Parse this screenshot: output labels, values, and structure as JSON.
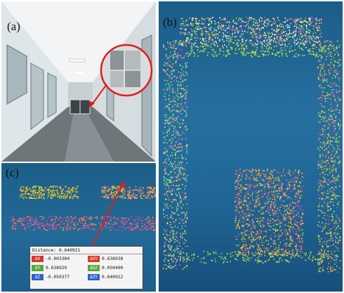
{
  "labels": {
    "a": "(a)",
    "b": "(b)",
    "c": "(c)"
  },
  "measurement": {
    "title": "Distance: 0.640921",
    "rows": [
      [
        {
          "axis": "ΔX",
          "value": "-0.003384",
          "color": "#d9382e"
        },
        {
          "axis": "ΔXY",
          "value": "0.638938",
          "color": "#d9382e"
        }
      ],
      [
        {
          "axis": "ΔY",
          "value": "0.638929",
          "color": "#58a83a"
        },
        {
          "axis": "ΔXZ",
          "value": "0.050490",
          "color": "#58a83a"
        }
      ],
      [
        {
          "axis": "ΔZ",
          "value": "-0.050377",
          "color": "#2f64c8"
        },
        {
          "axis": "ΔZY",
          "value": "0.640912",
          "color": "#2f64c8"
        }
      ]
    ]
  },
  "colors": {
    "point_yellow": "#e8e23a",
    "point_orange": "#f0a020",
    "point_magenta": "#e04ab8",
    "point_green": "#8fe060",
    "point_cyan": "#7fd6d0",
    "arrow_red": "#e0201c"
  }
}
